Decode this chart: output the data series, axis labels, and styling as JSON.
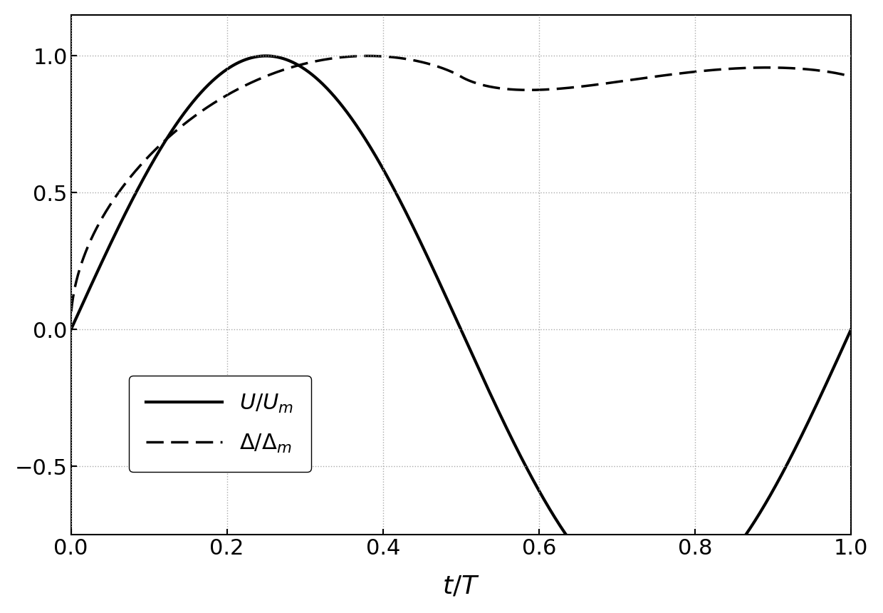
{
  "title": "",
  "xlabel": "$t/T$",
  "ylabel": "",
  "xlim": [
    0,
    1
  ],
  "ylim": [
    -0.75,
    1.15
  ],
  "xticks": [
    0,
    0.2,
    0.4,
    0.6,
    0.8,
    1
  ],
  "yticks": [
    -0.5,
    0,
    0.5,
    1
  ],
  "solid_color": "#000000",
  "dashed_color": "#000000",
  "solid_linewidth": 3.0,
  "dashed_linewidth": 2.5,
  "background_color": "#ffffff",
  "legend_labels": [
    "$U/U_m$",
    "$\\Delta/\\Delta_m$"
  ],
  "grid_color": "#aaaaaa"
}
